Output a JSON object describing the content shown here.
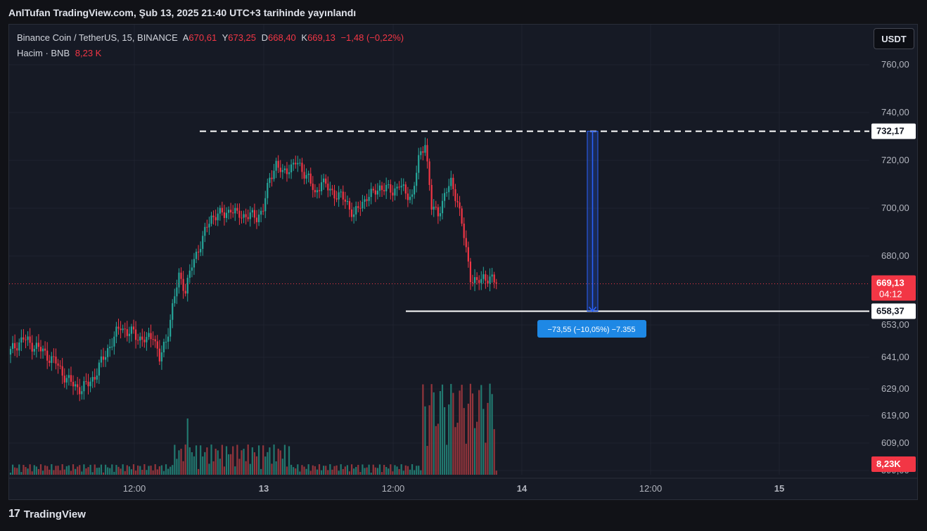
{
  "header": {
    "published_line": "AnlTufan TradingView.com, Şub 13, 2025 21:40 UTC+3 tarihinde yayınlandı"
  },
  "legend": {
    "symbol": "Binance Coin / TetherUS, 15, BINANCE",
    "open_label": "A",
    "open": "670,61",
    "high_label": "Y",
    "high": "673,25",
    "low_label": "D",
    "low": "668,40",
    "close_label": "K",
    "close": "669,13",
    "change": "−1,48 (−0,22%)",
    "volume_label": "Hacim · BNB",
    "volume": "8,23 K"
  },
  "currency_button": "USDT",
  "footer": {
    "brand": "TradingView",
    "logo": "17"
  },
  "colors": {
    "background": "#161a25",
    "up": "#26a69a",
    "down": "#f23645",
    "up_volume": "#22786f",
    "down_volume": "#93353c",
    "measure": "#2962ff",
    "measure_label": "#1e88e5"
  },
  "chart_data": {
    "type": "candlestick",
    "symbol": "BNBUSDT",
    "interval": "15",
    "y_scale": "nonlinear (labels compress below 660)",
    "y_ticks": [
      "760,00",
      "740,00",
      "720,00",
      "700,00",
      "680,00",
      "653,00",
      "641,00",
      "629,00",
      "619,00",
      "609,00",
      "599,00"
    ],
    "x_ticks": [
      "12:00",
      "13",
      "12:00",
      "14",
      "12:00",
      "15"
    ],
    "current_price": "669,13",
    "countdown": "04:12",
    "volume_last": "8,23K",
    "levels": [
      {
        "price": "732,17",
        "style": "dashed"
      },
      {
        "price": "658,37",
        "style": "solid"
      }
    ],
    "measure_label": "−73,55 (−10,05%) −7.355",
    "grid": true,
    "candles_close_path": [
      [
        0,
        643,
        1
      ],
      [
        3,
        646,
        1
      ],
      [
        6,
        648,
        1
      ],
      [
        9,
        646,
        0
      ],
      [
        12,
        645,
        0
      ],
      [
        15,
        643,
        0
      ],
      [
        18,
        641,
        0
      ],
      [
        21,
        639,
        0
      ],
      [
        24,
        635,
        0
      ],
      [
        27,
        632,
        0
      ],
      [
        30,
        630,
        0
      ],
      [
        33,
        629,
        1
      ],
      [
        36,
        631,
        1
      ],
      [
        39,
        634,
        1
      ],
      [
        42,
        639,
        1
      ],
      [
        45,
        644,
        1
      ],
      [
        48,
        648,
        1
      ],
      [
        51,
        653,
        1
      ],
      [
        54,
        650,
        0
      ],
      [
        57,
        650,
        1
      ],
      [
        60,
        648,
        0
      ],
      [
        63,
        647,
        1
      ],
      [
        66,
        650,
        1
      ],
      [
        69,
        640,
        0
      ],
      [
        72,
        647,
        1
      ],
      [
        75,
        660,
        1
      ],
      [
        78,
        672,
        1
      ],
      [
        81,
        667,
        0
      ],
      [
        84,
        676,
        1
      ],
      [
        87,
        683,
        1
      ],
      [
        90,
        690,
        1
      ],
      [
        93,
        696,
        1
      ],
      [
        96,
        698,
        1
      ],
      [
        99,
        697,
        0
      ],
      [
        102,
        700,
        1
      ],
      [
        105,
        697,
        0
      ],
      [
        108,
        697,
        1
      ],
      [
        111,
        697,
        0
      ],
      [
        114,
        696,
        0
      ],
      [
        117,
        700,
        1
      ],
      [
        120,
        712,
        1
      ],
      [
        123,
        719,
        1
      ],
      [
        126,
        714,
        0
      ],
      [
        129,
        717,
        1
      ],
      [
        132,
        719,
        1
      ],
      [
        135,
        716,
        0
      ],
      [
        138,
        713,
        0
      ],
      [
        141,
        705,
        0
      ],
      [
        144,
        712,
        1
      ],
      [
        147,
        708,
        0
      ],
      [
        150,
        706,
        0
      ],
      [
        153,
        705,
        0
      ],
      [
        156,
        702,
        0
      ],
      [
        159,
        697,
        0
      ],
      [
        162,
        701,
        1
      ],
      [
        165,
        705,
        1
      ],
      [
        168,
        706,
        1
      ],
      [
        171,
        709,
        1
      ],
      [
        174,
        708,
        0
      ],
      [
        177,
        707,
        0
      ],
      [
        180,
        710,
        1
      ],
      [
        183,
        706,
        0
      ],
      [
        186,
        705,
        0
      ],
      [
        189,
        720,
        1
      ],
      [
        192,
        728,
        1
      ],
      [
        195,
        700,
        0
      ],
      [
        198,
        698,
        0
      ],
      [
        201,
        705,
        1
      ],
      [
        204,
        711,
        1
      ],
      [
        207,
        703,
        0
      ],
      [
        210,
        688,
        0
      ],
      [
        213,
        672,
        0
      ],
      [
        216,
        669,
        0
      ],
      [
        219,
        672,
        1
      ],
      [
        222,
        671,
        0
      ],
      [
        225,
        669,
        0
      ]
    ]
  }
}
